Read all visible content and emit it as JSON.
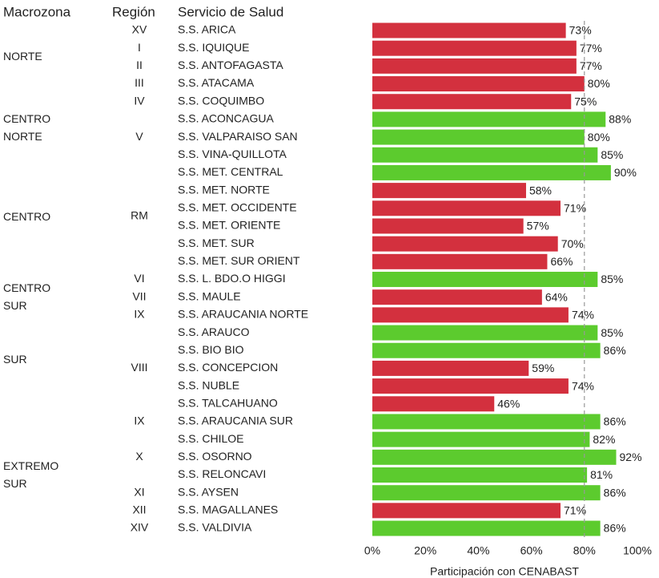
{
  "chart_data": {
    "type": "bar",
    "orientation": "horizontal",
    "headers": [
      "Macrozona",
      "Región",
      "Servicio de Salud"
    ],
    "macrozonas": [
      null,
      "NORTE",
      null,
      null,
      null,
      "CENTRO NORTE",
      null,
      null,
      null,
      null,
      "CENTRO",
      null,
      null,
      null,
      "CENTRO SUR",
      null,
      null,
      null,
      "SUR",
      null,
      null,
      null,
      null,
      null,
      "EXTREMO SUR",
      null,
      null,
      null,
      null
    ],
    "regions": [
      "XV",
      "I",
      "II",
      "III",
      "IV",
      null,
      "V",
      null,
      null,
      null,
      "RM",
      null,
      null,
      null,
      "VI",
      "VII",
      "IX",
      null,
      null,
      "VIII",
      null,
      null,
      "IX",
      null,
      "X",
      null,
      "XI",
      "XII",
      "XIV"
    ],
    "categories": [
      "S.S. ARICA",
      "S.S. IQUIQUE",
      "S.S. ANTOFAGASTA",
      "S.S. ATACAMA",
      "S.S. COQUIMBO",
      "S.S. ACONCAGUA",
      "S.S. VALPARAISO SAN",
      "S.S. VINA-QUILLOTA",
      "S.S. MET. CENTRAL",
      "S.S. MET. NORTE",
      "S.S. MET. OCCIDENTE",
      "S.S. MET. ORIENTE",
      "S.S. MET. SUR",
      "S.S. MET. SUR ORIENT",
      "S.S. L. BDO.O HIGGI",
      "S.S. MAULE",
      "S.S. ARAUCANIA NORTE",
      "S.S. ARAUCO",
      "S.S. BIO BIO",
      "S.S. CONCEPCION",
      "S.S. NUBLE",
      "S.S. TALCAHUANO",
      "S.S. ARAUCANIA SUR",
      "S.S. CHILOE",
      "S.S. OSORNO",
      "S.S. RELONCAVI",
      "S.S. AYSEN",
      "S.S. MAGALLANES",
      "S.S. VALDIVIA"
    ],
    "values": [
      73,
      77,
      77,
      80,
      75,
      88,
      80,
      85,
      90,
      58,
      71,
      57,
      70,
      66,
      85,
      64,
      74,
      85,
      86,
      59,
      74,
      46,
      86,
      82,
      92,
      81,
      86,
      71,
      86
    ],
    "value_labels": [
      "73%",
      "77%",
      "77%",
      "80%",
      "75%",
      "88%",
      "80%",
      "85%",
      "90%",
      "58%",
      "71%",
      "57%",
      "70%",
      "66%",
      "85%",
      "64%",
      "74%",
      "85%",
      "86%",
      "59%",
      "74%",
      "46%",
      "86%",
      "82%",
      "92%",
      "81%",
      "86%",
      "71%",
      "86%"
    ],
    "colors": [
      "#d3303e",
      "#d3303e",
      "#d3303e",
      "#d3303e",
      "#d3303e",
      "#5ccb2e",
      "#5ccb2e",
      "#5ccb2e",
      "#5ccb2e",
      "#d3303e",
      "#d3303e",
      "#d3303e",
      "#d3303e",
      "#d3303e",
      "#5ccb2e",
      "#d3303e",
      "#d3303e",
      "#5ccb2e",
      "#5ccb2e",
      "#d3303e",
      "#d3303e",
      "#d3303e",
      "#5ccb2e",
      "#5ccb2e",
      "#5ccb2e",
      "#5ccb2e",
      "#5ccb2e",
      "#d3303e",
      "#5ccb2e"
    ],
    "xlim": [
      0,
      100
    ],
    "xticks": [
      {
        "value": 0,
        "label": "0%"
      },
      {
        "value": 20,
        "label": "20%"
      },
      {
        "value": 40,
        "label": "40%"
      },
      {
        "value": 60,
        "label": "60%"
      },
      {
        "value": 80,
        "label": "80%"
      },
      {
        "value": 100,
        "label": "100%"
      }
    ],
    "reference_line": 80,
    "x_label": "Participación con CENABAST"
  }
}
